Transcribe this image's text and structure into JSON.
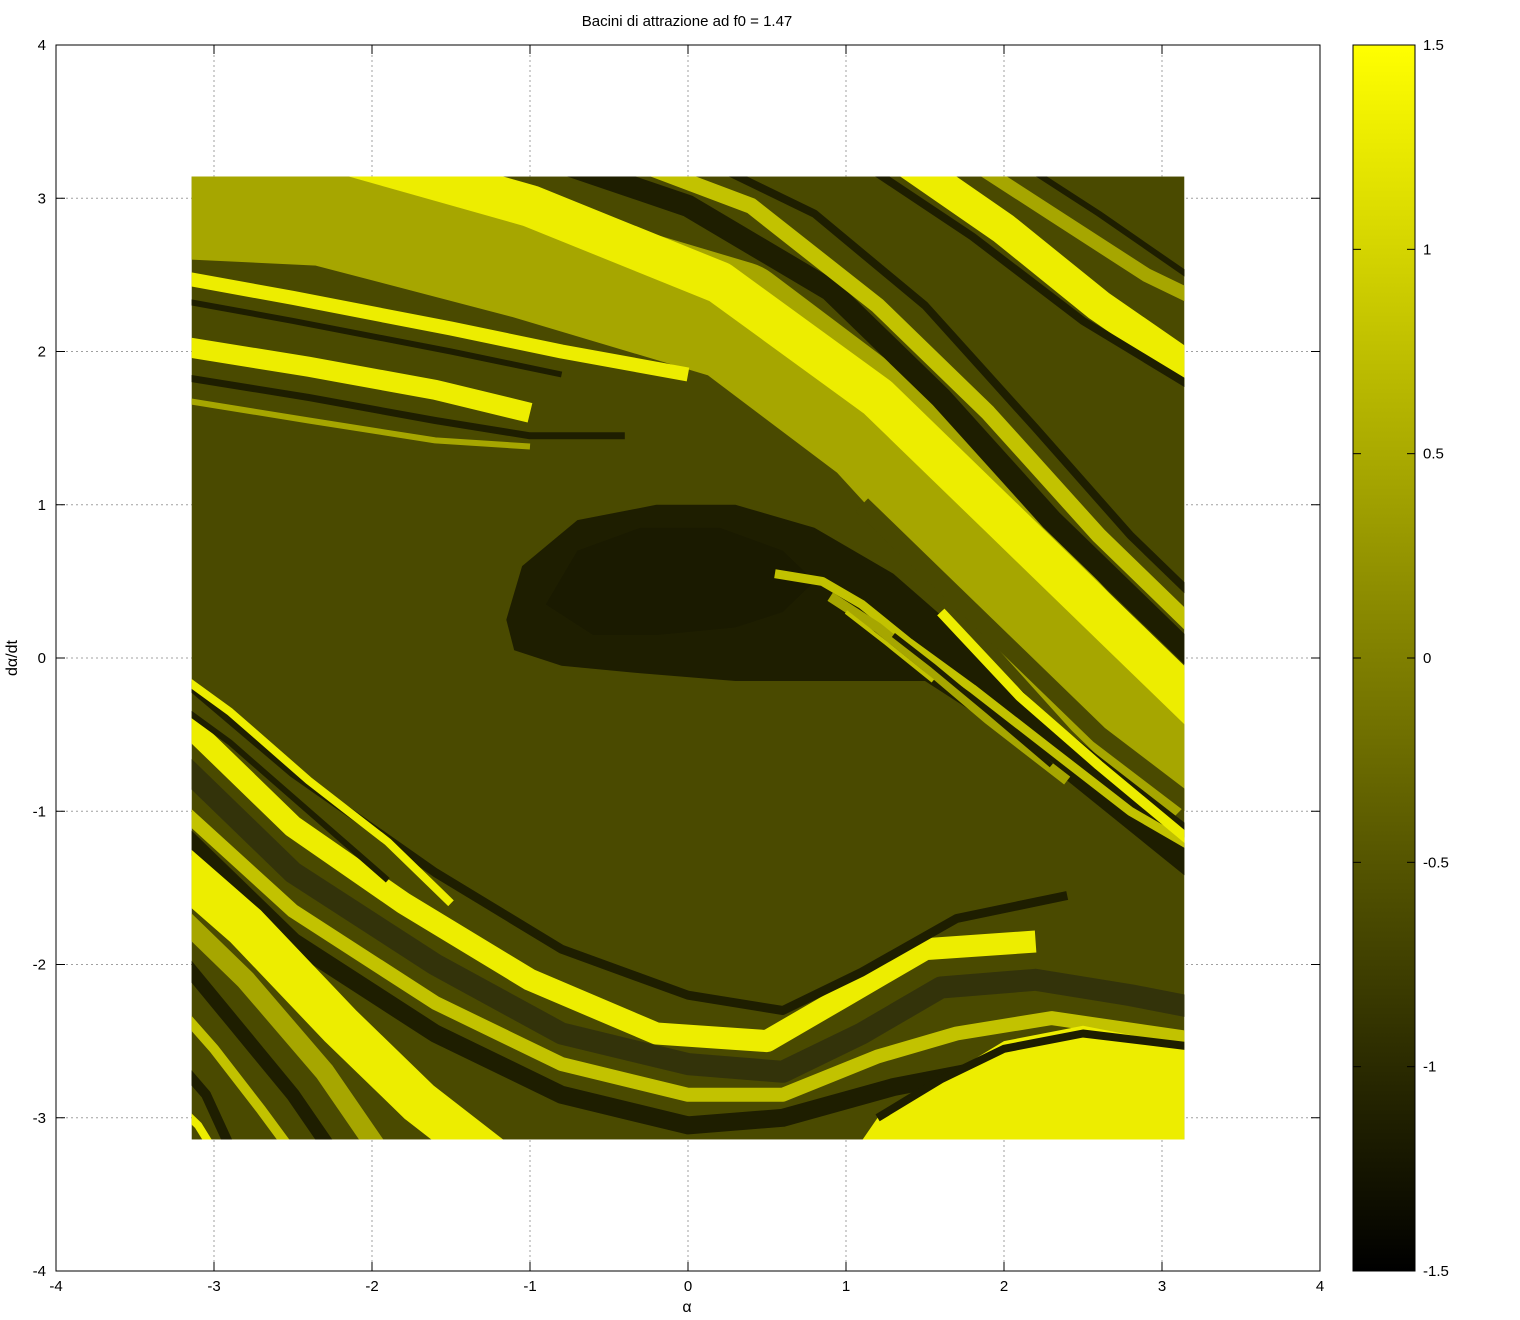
{
  "chart_data": {
    "type": "heatmap",
    "title": "Bacini di attrazione ad f0 = 1.47",
    "xlabel": "α",
    "ylabel": "dα/dt",
    "xlim": [
      -4,
      4
    ],
    "ylim": [
      -4,
      4
    ],
    "x_ticks": [
      -4,
      -3,
      -2,
      -1,
      0,
      1,
      2,
      3,
      4
    ],
    "y_ticks": [
      -4,
      -3,
      -2,
      -1,
      0,
      1,
      2,
      3,
      4
    ],
    "x_tick_labels": [
      "-4",
      "-3",
      "-2",
      "-1",
      "0",
      "1",
      "2",
      "3",
      "4"
    ],
    "y_tick_labels": [
      "-4",
      "-3",
      "-2",
      "-1",
      "0",
      "1",
      "2",
      "3",
      "4"
    ],
    "data_extent": {
      "x": [
        -3.14159,
        3.14159
      ],
      "y": [
        -3.14159,
        3.14159
      ]
    },
    "grid": true,
    "colorbar": {
      "range": [
        -1.5,
        1.5
      ],
      "ticks": [
        -1.5,
        -1,
        -0.5,
        0,
        0.5,
        1,
        1.5
      ],
      "tick_labels": [
        "-1.5",
        "-1",
        "-0.5",
        "0",
        "0.5",
        "1",
        "1.5"
      ],
      "colormap": [
        "#000000",
        "#ffff00"
      ]
    },
    "colors": {
      "very_dark": "#1e1e00",
      "dark": "#33330a",
      "olive_dark": "#3d3d00",
      "olive": "#4a4a00",
      "olive_mid": "#6a6a00",
      "khaki": "#a6a600",
      "light_khaki": "#c2c200",
      "yellow": "#eded00",
      "bright_yellow": "#ffff00"
    }
  }
}
